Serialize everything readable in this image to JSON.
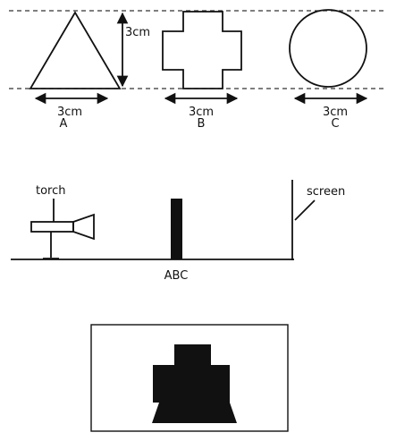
{
  "shapes": [
    {
      "dimension": "3cm",
      "name": "A"
    },
    {
      "dimension": "3cm",
      "name": "B"
    },
    {
      "dimension": "3cm",
      "name": "C"
    }
  ],
  "height_label": "3cm",
  "setup": {
    "torch_label": "torch",
    "screen_label": "screen",
    "object_label": "ABC"
  }
}
